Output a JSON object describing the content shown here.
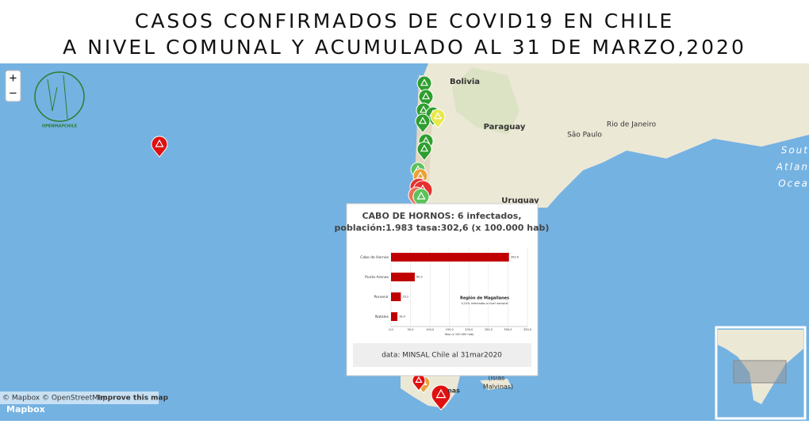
{
  "header": {
    "title_lines": [
      "CASOS CONFIRMADOS DE COVID19 EN CHILE",
      "A NIVEL COMUNAL Y ACUMULADO AL 31 DE MARZO,2020"
    ]
  },
  "map": {
    "labels": [
      "Bolivia",
      "Paraguay",
      "Uruguay",
      "São Paulo",
      "Rio de Janeiro",
      "Sout",
      "Atlan",
      "Ocea",
      "(Islas",
      "Malvinas)",
      "nas"
    ],
    "zoom_in": "+",
    "zoom_out": "−",
    "logo": "OPENMAPCHILE",
    "attribution": "© Mapbox © OpenStreetMap",
    "improve": "Improve this map",
    "mapbox": "Mapbox"
  },
  "popup": {
    "title": "CABO DE HORNOS: 6 infectados,",
    "subtitle": "población:1.983 tasa:302,6 (x 100.000 hab)",
    "footer": "data: MINSAL Chile al 31mar2020"
  },
  "chart_data": {
    "type": "bar",
    "orientation": "horizontal",
    "categories": [
      "Cabo de Hornos",
      "Punta Arenas",
      "Porvenir",
      "Natales"
    ],
    "values": [
      302.6,
      60.9,
      25.2,
      16.4
    ],
    "value_labels": [
      "302,6",
      "60,9",
      "25,2",
      "16,4"
    ],
    "color": "#c00000",
    "xlim": [
      0,
      350
    ],
    "xticks": [
      {
        "value": 0,
        "label": "0,0"
      },
      {
        "value": 50,
        "label": "50,0"
      },
      {
        "value": 100,
        "label": "100,0"
      },
      {
        "value": 150,
        "label": "150,0"
      },
      {
        "value": 200,
        "label": "200,0"
      },
      {
        "value": 250,
        "label": "250,0"
      },
      {
        "value": 300,
        "label": "300,0"
      },
      {
        "value": 350,
        "label": "350,0"
      }
    ],
    "x_label": "Tasa (x 100.000 hab)",
    "annotations": [
      "Región de Magallanes",
      "0,15% infectados a nivel nacional"
    ],
    "grid": true
  }
}
